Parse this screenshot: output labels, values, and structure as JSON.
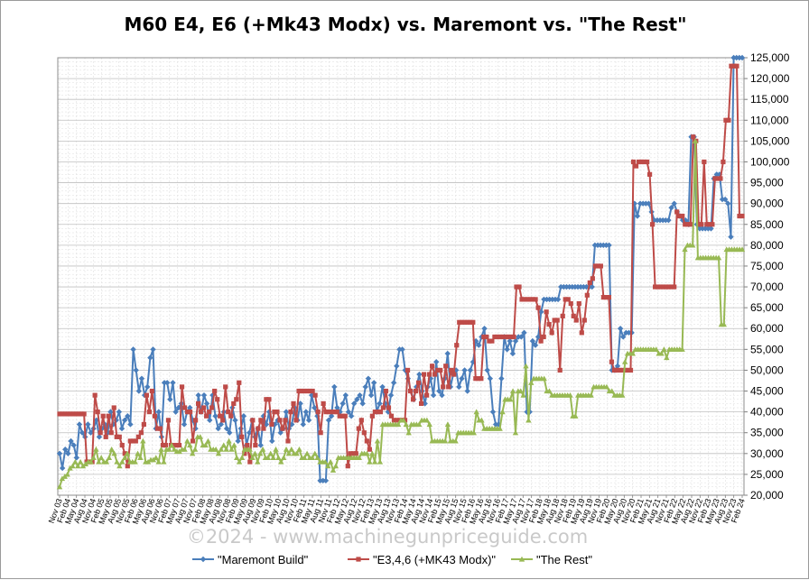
{
  "chart_data": {
    "type": "line",
    "title": "M60 E4, E6 (+Mk43 Modx) vs. Maremont vs. \"The Rest\"",
    "xlabel": "",
    "ylabel": "",
    "ylim": [
      20000,
      125000
    ],
    "y_ticks": [
      "20,000",
      "25,000",
      "30,000",
      "35,000",
      "40,000",
      "45,000",
      "50,000",
      "55,000",
      "60,000",
      "65,000",
      "70,000",
      "75,000",
      "80,000",
      "85,000",
      "90,000",
      "95,000",
      "100,000",
      "105,000",
      "110,000",
      "115,000",
      "120,000",
      "125,000"
    ],
    "y_axis_side": "right",
    "grid": true,
    "legend_position": "bottom",
    "x_tick_labels": [
      "Nov 03",
      "Feb 04",
      "May 04",
      "Aug 04",
      "Nov 04",
      "Feb 05",
      "May 05",
      "Aug 05",
      "Nov 05",
      "Feb 06",
      "May 06",
      "Aug 06",
      "Nov 06",
      "Feb 07",
      "May 07",
      "Aug 07",
      "Nov 07",
      "Feb 08",
      "May 08",
      "Aug 08",
      "Nov 08",
      "Feb 09",
      "May 09",
      "Aug 09",
      "Nov 09",
      "Feb 10",
      "May 10",
      "Aug 10",
      "Nov 10",
      "Feb 11",
      "May 11",
      "Aug 11",
      "Nov 11",
      "Feb 12",
      "May 12",
      "Aug 12",
      "Nov 12",
      "Feb 13",
      "May 13",
      "Aug 13",
      "Nov 13",
      "Feb 14",
      "May 14",
      "Aug 14",
      "Nov 14",
      "Feb 15",
      "May 15",
      "Aug 15",
      "Nov 15",
      "Feb 16",
      "May 16",
      "Aug 16",
      "Nov 16",
      "Feb 17",
      "May 17",
      "Aug 17",
      "Nov 17",
      "Feb 18",
      "May 18",
      "Aug 18",
      "Nov 18",
      "Feb 19",
      "May 19",
      "Aug 19",
      "Nov 19",
      "Feb 20",
      "May 20",
      "Aug 20",
      "Nov 20",
      "Feb 21",
      "May 21",
      "Aug 21",
      "Nov 21",
      "Feb 22",
      "May 22",
      "Aug 22",
      "Nov 22",
      "Feb 23",
      "May 23",
      "Aug 23",
      "Nov 23",
      "Feb 24"
    ],
    "series": [
      {
        "name": "\"Maremont Build\"",
        "color": "#4a7ebb",
        "marker": "diamond",
        "values": [
          30000,
          26500,
          31000,
          30000,
          33000,
          32000,
          29000,
          37000,
          35000,
          34000,
          37000,
          35000,
          36000,
          38000,
          34000,
          36000,
          37000,
          35000,
          40000,
          37000,
          38000,
          40000,
          36000,
          38000,
          39000,
          37000,
          55000,
          50000,
          45000,
          48000,
          44000,
          46000,
          53000,
          55000,
          36000,
          40000,
          34000,
          47000,
          47000,
          43000,
          47000,
          40000,
          41000,
          42000,
          37000,
          40000,
          41000,
          38000,
          36000,
          44000,
          40000,
          44000,
          42000,
          38000,
          44000,
          39000,
          36000,
          37000,
          40000,
          36000,
          35000,
          41000,
          38000,
          33000,
          36000,
          39000,
          32000,
          35000,
          38000,
          34000,
          36000,
          32000,
          39000,
          37000,
          40000,
          33000,
          37000,
          38000,
          35000,
          36000,
          40000,
          36000,
          37000,
          41000,
          38000,
          42000,
          37000,
          40000,
          38000,
          44000,
          41000,
          39000,
          23500,
          23500,
          23500,
          38000,
          39000,
          46000,
          41000,
          40000,
          42000,
          44000,
          40000,
          39000,
          42000,
          43000,
          44000,
          42000,
          46000,
          48000,
          44000,
          47000,
          40000,
          42000,
          46000,
          42000,
          40000,
          44000,
          47000,
          51000,
          55000,
          55000,
          50000,
          48000,
          45000,
          43000,
          46000,
          49000,
          45000,
          42000,
          46000,
          48000,
          44000,
          52000,
          45000,
          44000,
          48000,
          54000,
          46000,
          49000,
          50000,
          46000,
          48000,
          50000,
          45000,
          50000,
          52000,
          57000,
          56000,
          58000,
          60000,
          50000,
          48000,
          40000,
          37000,
          37000,
          48000,
          58000,
          55000,
          57000,
          54000,
          57000,
          58000,
          58000,
          59000,
          40000,
          40000,
          57000,
          56000,
          58000,
          64000,
          67000,
          67000,
          67000,
          67000,
          67000,
          67000,
          70000,
          70000,
          70000,
          70000,
          70000,
          70000,
          70000,
          70000,
          70000,
          70000,
          70000,
          70000,
          80000,
          80000,
          80000,
          80000,
          80000,
          80000,
          50000,
          50000,
          51000,
          60000,
          58000,
          59000,
          59000,
          59000,
          90000,
          87000,
          90000,
          90000,
          90000,
          90000,
          88000,
          86000,
          86000,
          86000,
          86000,
          86000,
          86000,
          89000,
          90000,
          88000,
          87000,
          86000,
          86000,
          85000,
          106000,
          106000,
          85000,
          84000,
          84000,
          84000,
          84000,
          84000,
          96000,
          97000,
          97000,
          91000,
          91000,
          90000,
          82000,
          125000,
          125000,
          125000,
          125000
        ]
      },
      {
        "name": "\"E3,4,6 (+MK43 Modx)\"",
        "color": "#be4b48",
        "marker": "square",
        "values": [
          39500,
          39500,
          39500,
          39500,
          39500,
          39500,
          39500,
          39500,
          39500,
          39500,
          28000,
          28000,
          28000,
          44000,
          40000,
          35000,
          39000,
          34000,
          39000,
          35000,
          41000,
          34000,
          34000,
          32000,
          30000,
          27000,
          33000,
          33000,
          33000,
          34000,
          35000,
          37000,
          44000,
          40000,
          45000,
          39000,
          36000,
          36000,
          32000,
          32000,
          38000,
          32000,
          32000,
          32000,
          32000,
          46000,
          41000,
          40000,
          40000,
          33000,
          38000,
          42000,
          40000,
          41000,
          39000,
          40000,
          41000,
          45000,
          43000,
          39000,
          38000,
          46000,
          40000,
          39000,
          42000,
          43000,
          47000,
          34000,
          30000,
          32000,
          28000,
          38000,
          32000,
          36000,
          38000,
          36000,
          43000,
          43000,
          37000,
          40000,
          40000,
          38000,
          36000,
          38000,
          33000,
          40000,
          42000,
          38000,
          45000,
          45000,
          45000,
          45000,
          45000,
          45000,
          44000,
          40000,
          35000,
          42000,
          40000,
          40000,
          40000,
          40000,
          40000,
          39000,
          39000,
          39000,
          27000,
          30000,
          30000,
          30000,
          36000,
          38000,
          35000,
          33000,
          31000,
          39000,
          40000,
          40000,
          40000,
          41000,
          45000,
          41000,
          39000,
          38000,
          38000,
          38000,
          38000,
          38000,
          50000,
          45000,
          43000,
          45000,
          47000,
          42000,
          49000,
          44000,
          49000,
          51000,
          49000,
          50000,
          50000,
          46000,
          51000,
          46000,
          50000,
          49000,
          56000,
          61500,
          61500,
          61500,
          61500,
          61500,
          61500,
          48000,
          48000,
          48000,
          58000,
          58000,
          57000,
          57000,
          58000,
          58000,
          58000,
          58000,
          58000,
          58000,
          58000,
          58000,
          70000,
          70000,
          67000,
          67000,
          67000,
          67000,
          67000,
          67000,
          65000,
          57000,
          58000,
          64000,
          61000,
          59000,
          62000,
          62000,
          50000,
          63000,
          67000,
          67000,
          66000,
          63000,
          62000,
          66000,
          59000,
          62000,
          68000,
          71000,
          72000,
          75000,
          75000,
          75000,
          67500,
          67500,
          67500,
          52000,
          50000,
          50000,
          50000,
          50000,
          50000,
          50000,
          50000,
          100000,
          99000,
          100000,
          100000,
          100000,
          100000,
          97000,
          85000,
          70000,
          70000,
          70000,
          70000,
          70000,
          70000,
          70000,
          70000,
          88000,
          87000,
          87000,
          85000,
          85000,
          85000,
          106000,
          105000,
          85000,
          85000,
          100000,
          85000,
          85000,
          85000,
          96000,
          96000,
          96000,
          100000,
          110000,
          110000,
          123000,
          123000,
          123000,
          87000,
          87000
        ]
      },
      {
        "name": "\"The Rest\"",
        "color": "#98b954",
        "marker": "triangle",
        "values": [
          22000,
          24000,
          24500,
          25000,
          26500,
          27000,
          28000,
          27000,
          28000,
          27000,
          27500,
          28000,
          28000,
          29000,
          31000,
          28000,
          29000,
          28000,
          28000,
          29000,
          31000,
          30000,
          28000,
          27000,
          28000,
          29000,
          30000,
          28000,
          28000,
          28000,
          30000,
          29000,
          33000,
          28000,
          28000,
          28500,
          28500,
          29000,
          28000,
          31000,
          28000,
          31000,
          31000,
          32000,
          31000,
          30500,
          30500,
          31000,
          31000,
          33000,
          32000,
          30000,
          31000,
          34000,
          34000,
          32000,
          32000,
          33000,
          31000,
          31000,
          31000,
          30000,
          31000,
          32000,
          31000,
          33000,
          31000,
          32000,
          29000,
          28000,
          29000,
          31000,
          31000,
          31000,
          29000,
          30000,
          28000,
          30000,
          31000,
          29000,
          29000,
          30000,
          29000,
          31000,
          29000,
          28000,
          29000,
          31000,
          30000,
          31000,
          30000,
          30000,
          31000,
          29000,
          29000,
          30000,
          29000,
          29000,
          30000,
          29000,
          28000,
          28000,
          28000,
          27000,
          28000,
          26000,
          27000,
          29000,
          29000,
          29000,
          29000,
          29000,
          29000,
          29000,
          29000,
          29000,
          30000,
          30000,
          30000,
          28000,
          30000,
          28000,
          33000,
          28000,
          37000,
          37000,
          37000,
          37000,
          37000,
          37000,
          37000,
          38000,
          38000,
          37000,
          35000,
          37000,
          37000,
          37000,
          37000,
          38000,
          38000,
          38000,
          37000,
          33000,
          33000,
          33000,
          33000,
          33000,
          33000,
          37000,
          33000,
          33000,
          33000,
          35000,
          35000,
          35000,
          35000,
          35000,
          35000,
          35000,
          40000,
          38000,
          38000,
          36000,
          36000,
          36000,
          36000,
          36000,
          36000,
          36000,
          40000,
          43000,
          43000,
          43000,
          45000,
          35000,
          45000,
          45000,
          44000,
          51000,
          38000,
          47000,
          48000,
          48000,
          48000,
          48000,
          48000,
          45000,
          45000,
          44000,
          44000,
          44000,
          44000,
          44000,
          44000,
          44000,
          44000,
          39000,
          39000,
          44000,
          44000,
          44000,
          44000,
          44000,
          44000,
          46000,
          46000,
          46000,
          46000,
          46000,
          46000,
          45000,
          45000,
          44000,
          44000,
          44000,
          44000,
          52000,
          54000,
          54000,
          54000,
          55000,
          55000,
          55000,
          55000,
          55000,
          55000,
          55000,
          55000,
          55000,
          54000,
          54000,
          55000,
          53000,
          55000,
          55000,
          55000,
          55000,
          55000,
          55000,
          79000,
          80000,
          80000,
          80000,
          105000,
          77000,
          77000,
          77000,
          77000,
          77000,
          77000,
          77000,
          77000,
          77000,
          61000,
          61000,
          79000,
          79000,
          79000,
          79000,
          79000,
          79000,
          79000
        ]
      }
    ]
  },
  "watermark": "©2024 - www.machinegunpriceguide.com"
}
